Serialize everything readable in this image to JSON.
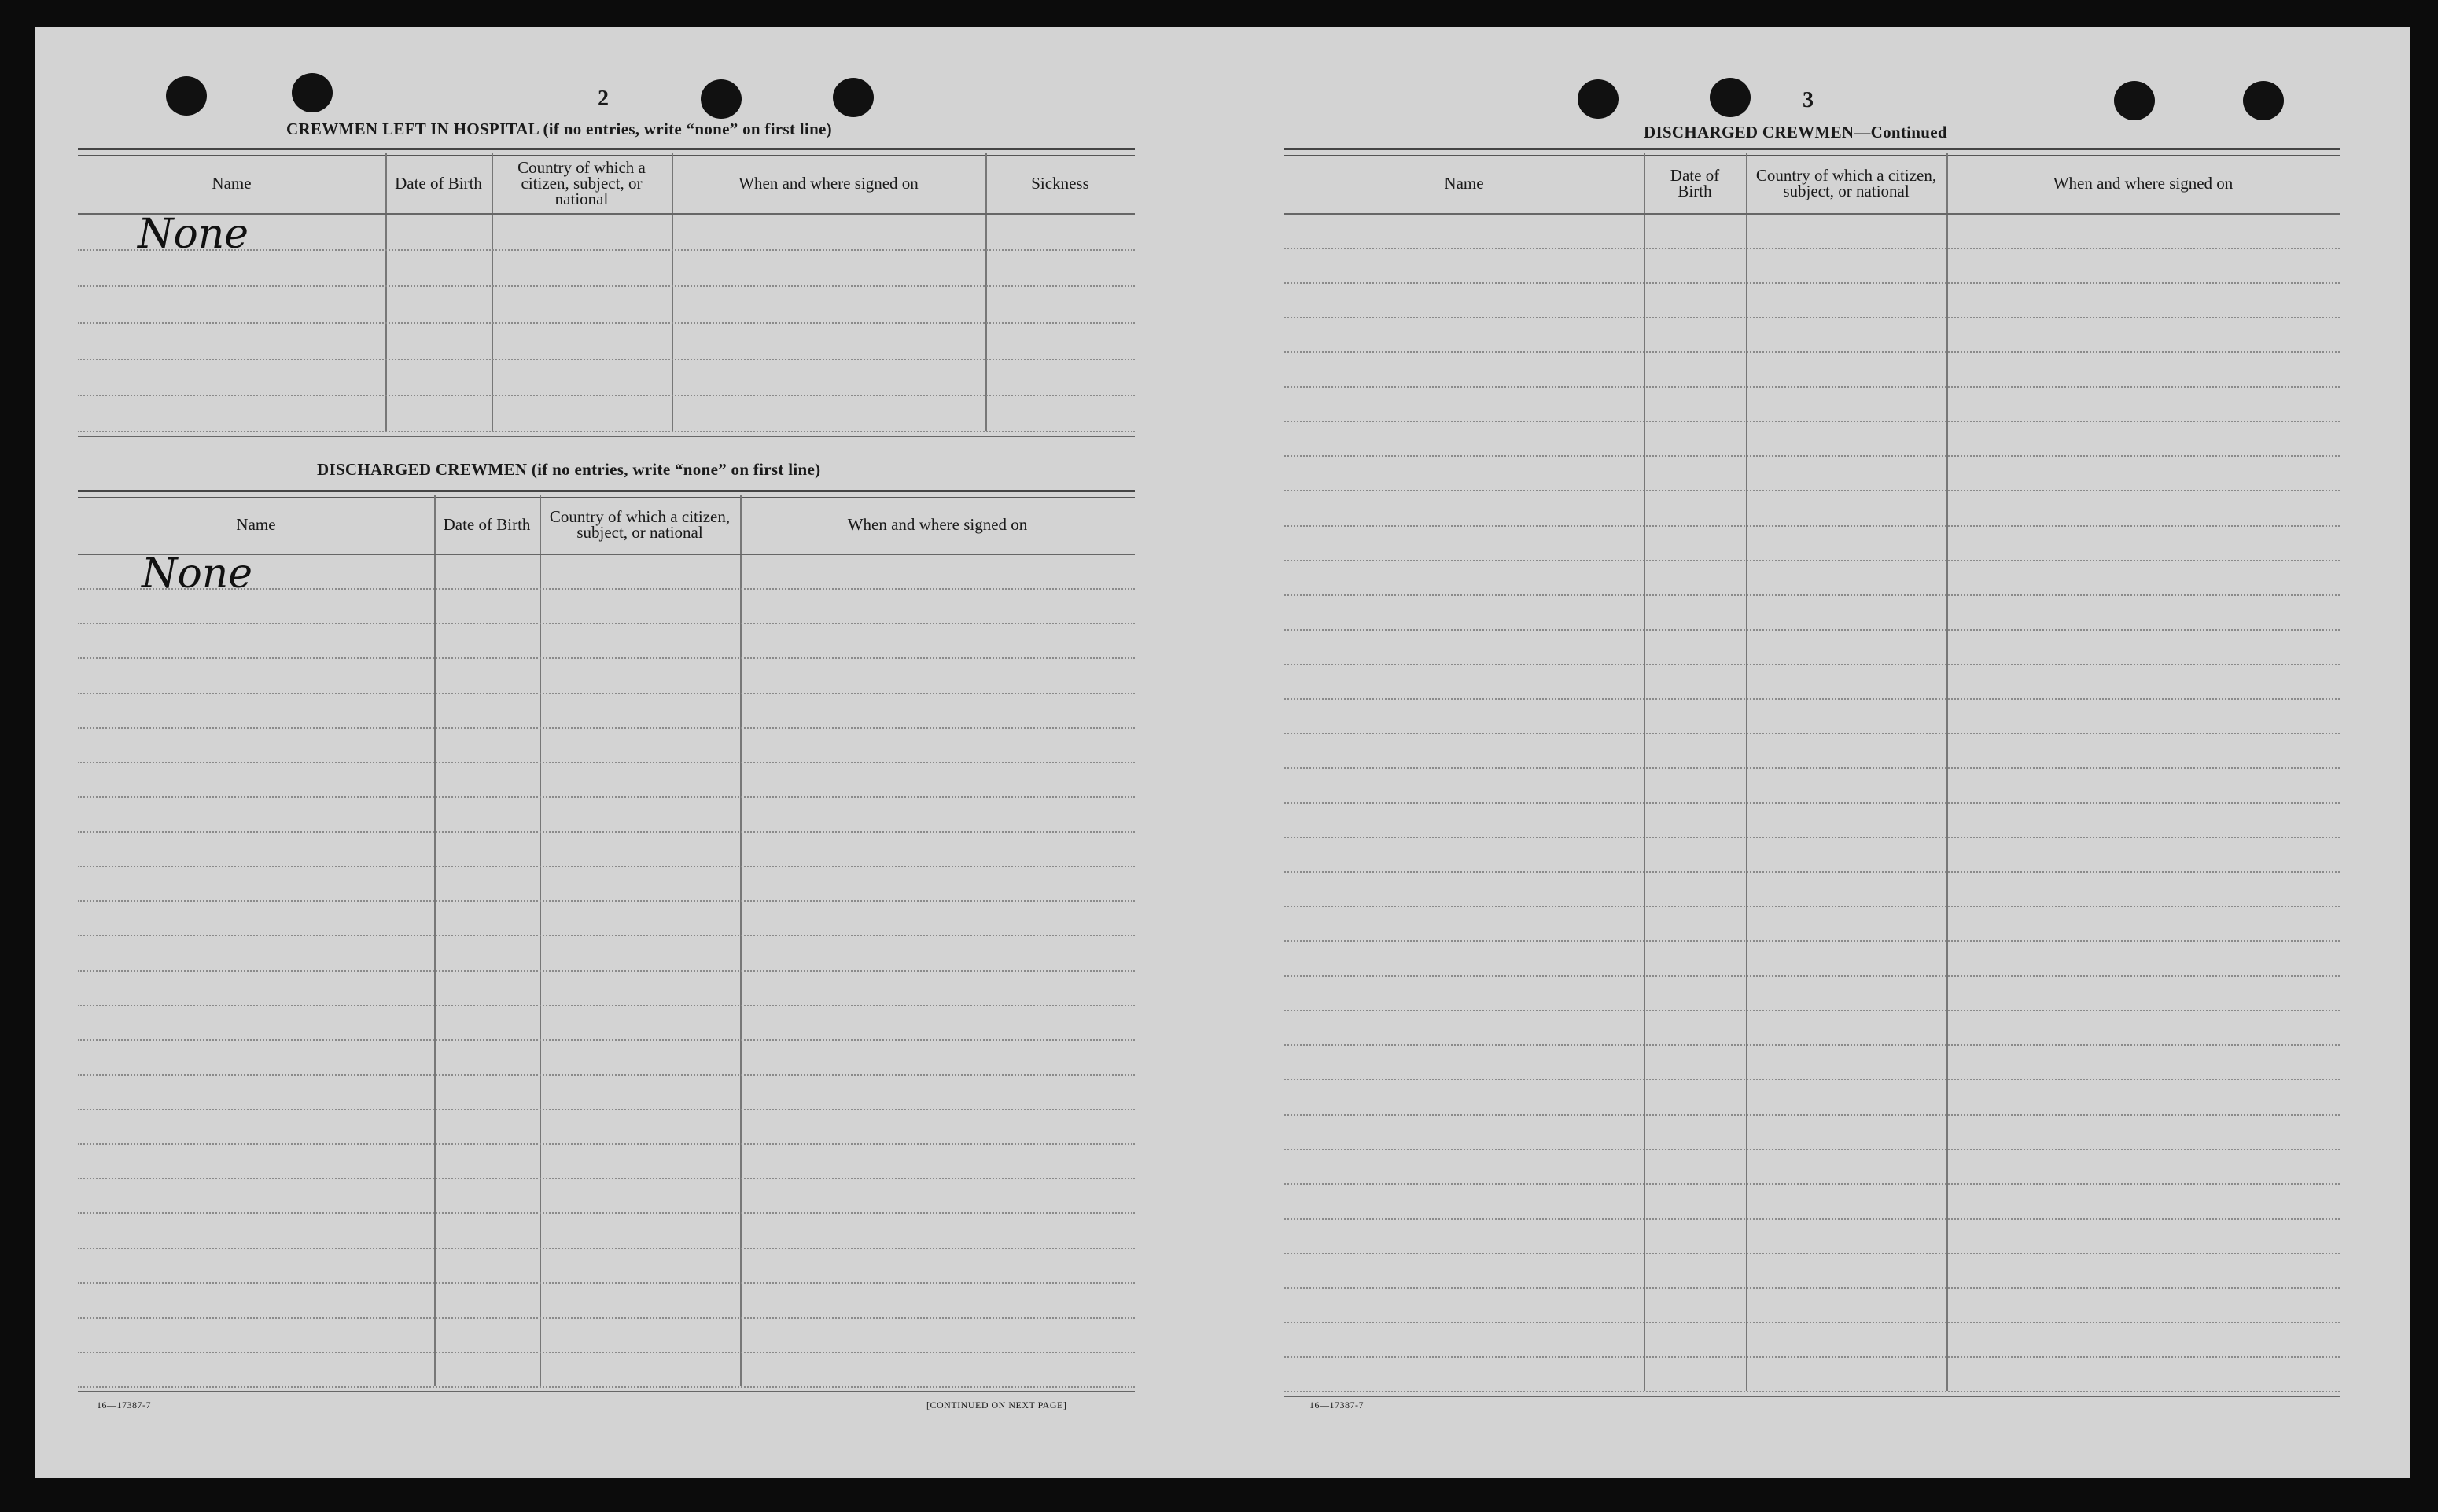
{
  "left_page": {
    "page_number": "2",
    "hospital": {
      "title": "CREWMEN LEFT IN HOSPITAL (if no entries, write “none” on first line)",
      "headers": [
        "Name",
        "Date of Birth",
        "Country of which a citizen, subject, or national",
        "When and where signed on",
        "Sickness"
      ],
      "handwritten_entry": "None"
    },
    "discharged": {
      "title": "DISCHARGED CREWMEN (if no entries, write “none” on first line)",
      "headers": [
        "Name",
        "Date of Birth",
        "Country of which a citizen, subject, or national",
        "When and where signed on"
      ],
      "handwritten_entry": "None"
    },
    "form_number": "16—17387-7",
    "continued_note": "[CONTINUED ON NEXT PAGE]"
  },
  "right_page": {
    "page_number": "3",
    "title": "DISCHARGED CREWMEN—Continued",
    "headers": [
      "Name",
      "Date of Birth",
      "Country of which a citizen, subject, or national",
      "When and where signed on"
    ],
    "form_number": "16—17387-7"
  }
}
